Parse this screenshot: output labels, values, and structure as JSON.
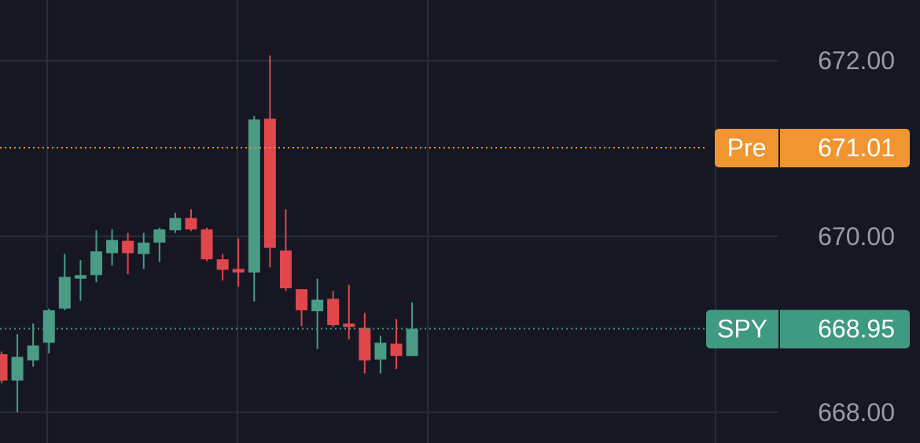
{
  "chart_data": {
    "type": "candlestick",
    "categories": [
      null,
      null,
      null,
      null,
      null,
      null,
      null,
      null,
      null,
      null,
      null,
      null,
      null,
      null,
      null,
      null,
      null,
      null,
      null,
      null,
      null,
      null,
      null,
      null,
      null,
      null,
      null
    ],
    "open": [
      668.66,
      668.36,
      668.59,
      668.79,
      669.18,
      669.52,
      669.56,
      669.81,
      669.95,
      669.8,
      669.93,
      670.07,
      670.21,
      670.08,
      669.74,
      669.63,
      669.59,
      671.34,
      669.84,
      669.4,
      669.15,
      669.29,
      669.01,
      668.96,
      668.6,
      668.78,
      668.64
    ],
    "high": [
      668.69,
      668.89,
      669.01,
      669.18,
      669.8,
      669.73,
      670.07,
      670.08,
      670.04,
      670.04,
      670.1,
      670.27,
      670.31,
      670.1,
      669.8,
      669.98,
      671.37,
      672.06,
      670.31,
      669.4,
      669.52,
      669.38,
      669.45,
      669.13,
      668.87,
      669.06,
      669.25
    ],
    "low": [
      668.33,
      668.0,
      668.52,
      668.67,
      669.16,
      669.27,
      669.48,
      669.67,
      669.57,
      669.63,
      669.71,
      670.04,
      670.06,
      669.72,
      669.5,
      669.43,
      669.26,
      669.65,
      669.38,
      668.98,
      668.72,
      668.97,
      668.83,
      668.44,
      668.44,
      668.49,
      668.64
    ],
    "close": [
      668.36,
      668.63,
      668.76,
      669.16,
      669.54,
      669.56,
      669.83,
      669.96,
      669.81,
      669.93,
      670.08,
      670.21,
      670.08,
      669.74,
      669.62,
      669.59,
      671.33,
      669.87,
      669.41,
      669.16,
      669.28,
      668.99,
      668.97,
      668.59,
      668.79,
      668.64,
      668.95
    ],
    "up_color": "#4a9c86",
    "down_color": "#e0474c",
    "ylim": [
      667.65,
      672.69
    ],
    "yticks": [
      {
        "value": 668,
        "label": "668.00"
      },
      {
        "value": 670,
        "label": "670.00"
      },
      {
        "value": 672,
        "label": "672.00"
      }
    ],
    "grid": true,
    "price_lines": [
      {
        "name": "Pre",
        "value": 671.01,
        "color": "#f0952f"
      },
      {
        "name": "SPY",
        "value": 668.95,
        "color": "#3e9a81"
      }
    ]
  }
}
